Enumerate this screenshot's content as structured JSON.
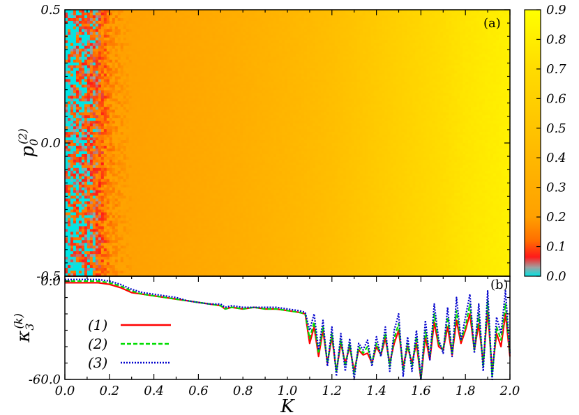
{
  "chart_data": [
    {
      "panel_label": "(a)",
      "type": "heatmap",
      "xlim": [
        0.0,
        2.0
      ],
      "ylim": [
        -0.5,
        0.5
      ],
      "y_ticks": [
        "-0.5",
        "0.0",
        "0.5"
      ],
      "ylabel_base": "p",
      "ylabel_sub": "0",
      "ylabel_sup": "(2)",
      "colorbar": {
        "range": [
          0.0,
          0.9
        ],
        "ticks": [
          "0.0",
          "0.1",
          "0.2",
          "0.3",
          "0.4",
          "0.5",
          "0.6",
          "0.7",
          "0.8",
          "0.9"
        ],
        "colors": [
          "#00e5e5",
          "#ff1a1a",
          "#ff8c00",
          "#ffb400",
          "#ffd200",
          "#ffff00"
        ]
      },
      "profile": {
        "K": [
          0.0,
          0.05,
          0.1,
          0.15,
          0.2,
          0.25,
          0.3,
          0.4,
          0.6,
          0.8,
          1.0,
          1.2,
          1.4,
          1.6,
          1.8,
          2.0
        ],
        "mean_value": [
          0.02,
          0.03,
          0.06,
          0.1,
          0.17,
          0.2,
          0.21,
          0.23,
          0.27,
          0.32,
          0.38,
          0.45,
          0.55,
          0.65,
          0.75,
          0.82
        ]
      }
    },
    {
      "panel_label": "(b)",
      "type": "line",
      "xlabel": "K",
      "ylabel_base": "κ",
      "ylabel_sub": "3",
      "ylabel_sup": "(k)",
      "xlim": [
        0.0,
        2.0
      ],
      "ylim": [
        -60.0,
        3.0
      ],
      "x_ticks": [
        "0.0",
        "0.2",
        "0.4",
        "0.6",
        "0.8",
        "1.0",
        "1.2",
        "1.4",
        "1.6",
        "1.8",
        "2.0"
      ],
      "y_ticks": [
        "-60.0",
        "0.0"
      ],
      "x": [
        0.0,
        0.05,
        0.1,
        0.15,
        0.2,
        0.25,
        0.3,
        0.35,
        0.4,
        0.45,
        0.5,
        0.55,
        0.6,
        0.65,
        0.7,
        0.72,
        0.75,
        0.8,
        0.85,
        0.9,
        0.95,
        1.0,
        1.05,
        1.08,
        1.1,
        1.12,
        1.14,
        1.16,
        1.18,
        1.2,
        1.22,
        1.24,
        1.26,
        1.28,
        1.3,
        1.32,
        1.34,
        1.36,
        1.38,
        1.4,
        1.42,
        1.44,
        1.46,
        1.48,
        1.5,
        1.52,
        1.54,
        1.56,
        1.58,
        1.6,
        1.62,
        1.64,
        1.66,
        1.68,
        1.7,
        1.72,
        1.74,
        1.76,
        1.78,
        1.8,
        1.82,
        1.84,
        1.86,
        1.88,
        1.9,
        1.92,
        1.94,
        1.96,
        1.98,
        2.0
      ],
      "series": [
        {
          "name": "(1)",
          "color": "#ff0000",
          "dash": "none",
          "values": [
            -1,
            -1,
            -1,
            -1,
            -2,
            -4,
            -7,
            -8,
            -9,
            -10,
            -11,
            -12,
            -13,
            -14,
            -15,
            -17,
            -16,
            -17,
            -16,
            -17,
            -17,
            -18,
            -19,
            -20,
            -38,
            -28,
            -46,
            -30,
            -50,
            -34,
            -55,
            -38,
            -50,
            -40,
            -55,
            -42,
            -45,
            -44,
            -50,
            -40,
            -45,
            -35,
            -50,
            -38,
            -30,
            -52,
            -40,
            -50,
            -38,
            -60,
            -34,
            -48,
            -25,
            -40,
            -42,
            -28,
            -45,
            -24,
            -38,
            -30,
            -20,
            -42,
            -26,
            -50,
            -18,
            -55,
            -32,
            -40,
            -20,
            -46
          ]
        },
        {
          "name": "(2)",
          "color": "#00dd00",
          "dash": "6,3",
          "values": [
            0,
            0,
            0,
            0,
            -1,
            -3,
            -6,
            -8,
            -9,
            -10,
            -11,
            -12,
            -13,
            -14,
            -15,
            -17,
            -16,
            -17,
            -16,
            -17,
            -17,
            -18,
            -19,
            -20,
            -35,
            -25,
            -44,
            -28,
            -50,
            -32,
            -55,
            -36,
            -52,
            -38,
            -57,
            -40,
            -44,
            -40,
            -50,
            -38,
            -45,
            -32,
            -52,
            -35,
            -26,
            -55,
            -38,
            -52,
            -34,
            -60,
            -30,
            -46,
            -20,
            -38,
            -42,
            -22,
            -44,
            -18,
            -36,
            -28,
            -14,
            -42,
            -20,
            -52,
            -12,
            -58,
            -28,
            -36,
            -14,
            -44
          ]
        },
        {
          "name": "(3)",
          "color": "#0000cc",
          "dash": "2,2",
          "values": [
            1,
            1,
            1,
            1,
            0,
            -2,
            -5,
            -7,
            -8,
            -9,
            -10,
            -12,
            -13,
            -14,
            -14,
            -16,
            -15,
            -16,
            -16,
            -16,
            -16,
            -17,
            -18,
            -19,
            -30,
            -20,
            -42,
            -24,
            -52,
            -28,
            -58,
            -32,
            -55,
            -35,
            -60,
            -38,
            -42,
            -36,
            -52,
            -34,
            -46,
            -28,
            -55,
            -30,
            -20,
            -58,
            -34,
            -55,
            -30,
            -60,
            -24,
            -48,
            -14,
            -36,
            -44,
            -16,
            -46,
            -10,
            -36,
            -22,
            -8,
            -44,
            -14,
            -55,
            -6,
            -60,
            -22,
            -32,
            -6,
            -44
          ]
        }
      ]
    }
  ]
}
